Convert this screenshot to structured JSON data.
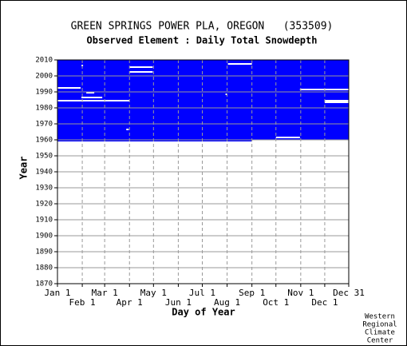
{
  "chart_data": {
    "type": "coverage",
    "title": "GREEN SPRINGS POWER PLA, OREGON   (353509)",
    "subtitle": "Observed Element : Daily Total Snowdepth",
    "x_label": "Day of Year",
    "y_label": "Year",
    "footer": [
      "Western",
      "Regional",
      "Climate",
      "Center"
    ],
    "color": "#0000ff",
    "gap_color": "#ffffff",
    "grid": true,
    "xlim": [
      1,
      365
    ],
    "ylim": [
      1870,
      2010
    ],
    "xticks": [
      {
        "value": 1,
        "label": "Jan 1"
      },
      {
        "value": 32,
        "label": "Feb 1"
      },
      {
        "value": 60,
        "label": "Mar 1"
      },
      {
        "value": 91,
        "label": "Apr 1"
      },
      {
        "value": 121,
        "label": "May 1"
      },
      {
        "value": 152,
        "label": "Jun 1"
      },
      {
        "value": 182,
        "label": "Jul 1"
      },
      {
        "value": 213,
        "label": "Aug 1"
      },
      {
        "value": 244,
        "label": "Sep 1"
      },
      {
        "value": 274,
        "label": "Oct 1"
      },
      {
        "value": 305,
        "label": "Nov 1"
      },
      {
        "value": 335,
        "label": "Dec 1"
      },
      {
        "value": 365,
        "label": "Dec 31"
      }
    ],
    "yticks": [
      1870,
      1880,
      1890,
      1900,
      1910,
      1920,
      1930,
      1940,
      1950,
      1960,
      1970,
      1980,
      1990,
      2000,
      2010
    ],
    "coverage": {
      "years": [
        1959,
        2010
      ],
      "days": [
        1,
        365
      ]
    },
    "gaps": [
      {
        "year": 2007,
        "start": 214,
        "end": 244
      },
      {
        "year": 2006,
        "start": 31,
        "end": 33
      },
      {
        "year": 2005,
        "start": 91,
        "end": 120
      },
      {
        "year": 2002,
        "start": 91,
        "end": 120
      },
      {
        "year": 1992,
        "start": 1,
        "end": 30
      },
      {
        "year": 1991,
        "start": 304,
        "end": 365
      },
      {
        "year": 1989,
        "start": 37,
        "end": 47
      },
      {
        "year": 1988,
        "start": 211,
        "end": 213
      },
      {
        "year": 1986,
        "start": 31,
        "end": 57
      },
      {
        "year": 1984,
        "start": 1,
        "end": 91
      },
      {
        "year": 1984,
        "start": 335,
        "end": 365
      },
      {
        "year": 1983,
        "start": 335,
        "end": 365
      },
      {
        "year": 1966,
        "start": 87,
        "end": 90
      },
      {
        "year": 1961,
        "start": 274,
        "end": 304
      },
      {
        "year": 1959,
        "start": 244,
        "end": 365
      }
    ]
  }
}
